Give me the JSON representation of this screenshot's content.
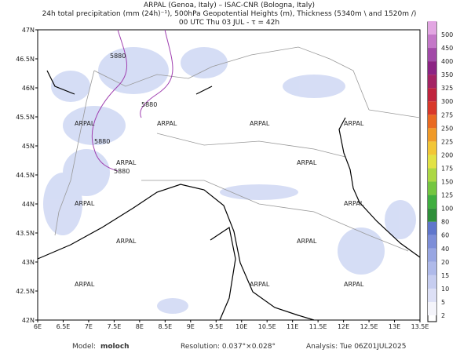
{
  "header": {
    "line1": "ARPAL (Genoa, Italy)  –  ISAC-CNR (Bologna, Italy)",
    "line2": "24h total precipitation (mm (24h)⁻¹), 500hPa Geopotential Heights (m), Thickness (5340m \\ and 1520m /)",
    "line3": "00 UTC Thu 03 JUL  -  τ = 42h"
  },
  "map": {
    "lon_labels": [
      "6E",
      "6.5E",
      "7E",
      "7.5E",
      "8E",
      "8.5E",
      "9E",
      "9.5E",
      "10E",
      "10.5E",
      "11E",
      "11.5E",
      "12E",
      "12.5E",
      "13E",
      "13.5E"
    ],
    "lat_labels": [
      "42N",
      "42.5N",
      "43N",
      "43.5N",
      "44N",
      "44.5N",
      "45N",
      "45.5N",
      "46N",
      "46.5N",
      "47N"
    ],
    "contour_label": "5880",
    "watermark": "ARPAL"
  },
  "colorbar": {
    "levels": [
      2,
      5,
      10,
      15,
      20,
      40,
      60,
      80,
      100,
      125,
      150,
      175,
      200,
      225,
      250,
      275,
      300,
      325,
      350,
      400,
      450,
      500
    ],
    "colors": [
      "#f4f4fa",
      "#dde0f6",
      "#c6cdf0",
      "#afbaea",
      "#98a6e2",
      "#7d8ed8",
      "#5f76cc",
      "#2f8f3a",
      "#3fae3f",
      "#74c640",
      "#acd844",
      "#e2e245",
      "#f2c636",
      "#f09a28",
      "#e96a22",
      "#d8382a",
      "#c0243e",
      "#a42464",
      "#8c2484",
      "#a24aa8",
      "#c478c8",
      "#e2a6e2"
    ]
  },
  "footer": {
    "model_label": "Model:",
    "model": "moloch",
    "resolution": "Resolution: 0.037°×0.028°",
    "analysis": "Analysis: Tue 06Z01JUL2025"
  }
}
